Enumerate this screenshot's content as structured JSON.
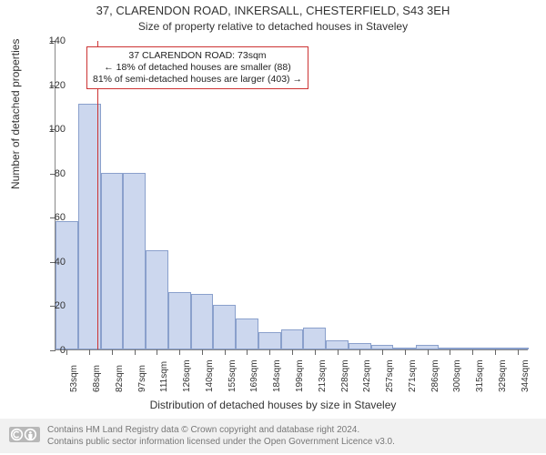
{
  "title_main": "37, CLARENDON ROAD, INKERSALL, CHESTERFIELD, S43 3EH",
  "title_sub": "Size of property relative to detached houses in Staveley",
  "yaxis_title": "Number of detached properties",
  "xaxis_title": "Distribution of detached houses by size in Staveley",
  "chart": {
    "type": "histogram",
    "ylim": [
      0,
      140
    ],
    "ytick_step": 20,
    "yticks": [
      0,
      20,
      40,
      60,
      80,
      100,
      120,
      140
    ],
    "categories": [
      "53sqm",
      "68sqm",
      "82sqm",
      "97sqm",
      "111sqm",
      "126sqm",
      "140sqm",
      "155sqm",
      "169sqm",
      "184sqm",
      "199sqm",
      "213sqm",
      "228sqm",
      "242sqm",
      "257sqm",
      "271sqm",
      "286sqm",
      "300sqm",
      "315sqm",
      "329sqm",
      "344sqm"
    ],
    "values": [
      58,
      111,
      80,
      80,
      45,
      26,
      25,
      20,
      14,
      8,
      9,
      10,
      4,
      3,
      2,
      1,
      2,
      1,
      1,
      1,
      1
    ],
    "bar_fill": "#ccd7ee",
    "bar_border": "#8aa0cc",
    "marker_line_color": "#cc3333",
    "marker_value_sqm": 73,
    "axis_color": "#888888",
    "tick_color": "#666666",
    "text_color": "#333333",
    "background_color": "#ffffff",
    "bar_gap_ratio": 0.0,
    "label_fontsize": 11,
    "title_fontsize": 13,
    "axis_title_fontsize": 12
  },
  "annotation": {
    "border_color": "#cc3333",
    "background_color": "#ffffff",
    "line1": "37 CLARENDON ROAD: 73sqm",
    "line2": "← 18% of detached houses are smaller (88)",
    "line3": "81% of semi-detached houses are larger (403) →"
  },
  "footer": {
    "line1": "Contains HM Land Registry data © Crown copyright and database right 2024.",
    "line2": "Contains public sector information licensed under the Open Government Licence v3.0.",
    "background_color": "#f1f1f1",
    "text_color": "#777777"
  }
}
